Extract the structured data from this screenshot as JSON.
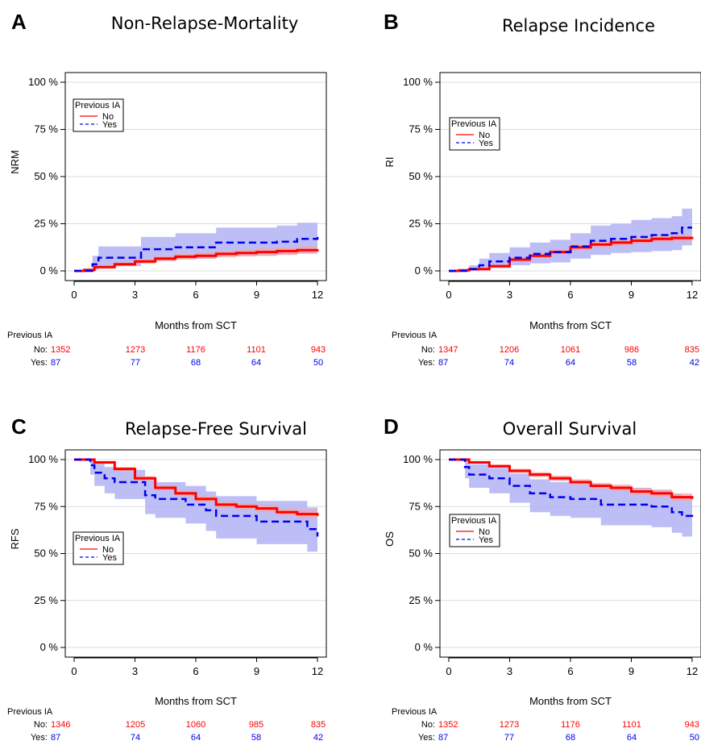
{
  "colors": {
    "no": "#ff0000",
    "yes": "#0000ee",
    "no_band": "#f2a6a6",
    "yes_band": "#b3b3f5",
    "grid": "#dcdcdc"
  },
  "chart_data": [
    {
      "type": "line",
      "panel": "A",
      "title": "Non-Relapse-Mortality",
      "xlabel": "Months from SCT",
      "ylabel": "NRM",
      "xlim": [
        0,
        12
      ],
      "ylim": [
        0,
        100
      ],
      "x_ticks": [
        "0",
        "3",
        "6",
        "9",
        "12"
      ],
      "y_ticks": [
        "0 %",
        "25 %",
        "50 %",
        "75 %",
        "100 %"
      ],
      "legend": {
        "title": "Previous IA",
        "entries": [
          "No",
          "Yes"
        ],
        "position": "top-left"
      },
      "grid": true,
      "series": [
        {
          "name": "No",
          "style": "solid",
          "x": [
            0,
            0.5,
            1,
            2,
            3,
            4,
            5,
            6,
            7,
            8,
            9,
            10,
            11,
            12
          ],
          "y": [
            0,
            0.5,
            2,
            3.5,
            5,
            6.5,
            7.5,
            8,
            9,
            9.5,
            10,
            10.5,
            11,
            11.5
          ],
          "lower": [
            0,
            0.2,
            1.2,
            2.5,
            3.8,
            5.2,
            6,
            6.5,
            7.2,
            7.7,
            8,
            8.5,
            9,
            9.5
          ],
          "upper": [
            0,
            0.9,
            2.8,
            4.5,
            6.2,
            7.8,
            9,
            9.8,
            10.6,
            11.3,
            12,
            12.5,
            13,
            13.5
          ]
        },
        {
          "name": "Yes",
          "style": "dashed",
          "x": [
            0,
            0.5,
            0.9,
            1.2,
            2,
            3,
            3.3,
            4,
            5,
            6.5,
            7,
            8,
            9,
            10,
            11,
            12
          ],
          "y": [
            0,
            0,
            3.5,
            7,
            7,
            7,
            11.5,
            11.5,
            12.5,
            12.5,
            15,
            15,
            15,
            15.5,
            17,
            18
          ],
          "lower": [
            0,
            0,
            0.5,
            2.5,
            2.5,
            2.5,
            5.5,
            5.5,
            6.5,
            6.5,
            8,
            8,
            8,
            8.5,
            9.5,
            10
          ],
          "upper": [
            0,
            0,
            8,
            13,
            13,
            13,
            18,
            18,
            20,
            20,
            23,
            23,
            23,
            24,
            25.5,
            26
          ]
        }
      ],
      "risk_table": {
        "title": "Previous IA",
        "rows": [
          {
            "label": "No:",
            "values": [
              "1352",
              "1273",
              "1176",
              "1101",
              "943"
            ]
          },
          {
            "label": "Yes:",
            "values": [
              "87",
              "77",
              "68",
              "64",
              "50"
            ]
          }
        ]
      }
    },
    {
      "type": "line",
      "panel": "B",
      "title": "Relapse Incidence",
      "xlabel": "Months from SCT",
      "ylabel": "RI",
      "xlim": [
        0,
        12
      ],
      "ylim": [
        0,
        100
      ],
      "x_ticks": [
        "0",
        "3",
        "6",
        "9",
        "12"
      ],
      "y_ticks": [
        "0 %",
        "25 %",
        "50 %",
        "75 %",
        "100 %"
      ],
      "legend": {
        "title": "Previous IA",
        "entries": [
          "No",
          "Yes"
        ],
        "position": "top-left"
      },
      "grid": true,
      "series": [
        {
          "name": "No",
          "style": "solid",
          "x": [
            0,
            0.5,
            1,
            2,
            3,
            4,
            5,
            6,
            7,
            8,
            9,
            10,
            11,
            12
          ],
          "y": [
            0,
            0.3,
            1,
            2.5,
            6,
            8,
            10,
            12.5,
            14,
            15,
            16,
            17,
            17.5,
            18
          ],
          "lower": [
            0,
            0.1,
            0.5,
            1.8,
            5,
            7,
            8.8,
            11.2,
            12.5,
            13.5,
            14.5,
            15.3,
            15.8,
            16.3
          ],
          "upper": [
            0,
            0.6,
            1.6,
            3.3,
            7,
            9.2,
            11.3,
            14,
            15.6,
            16.6,
            17.6,
            18.7,
            19.2,
            19.8
          ]
        },
        {
          "name": "Yes",
          "style": "dashed",
          "x": [
            0,
            1,
            1.5,
            2,
            3,
            4,
            5,
            6,
            6.5,
            7,
            8,
            9,
            10,
            11,
            11.5,
            12
          ],
          "y": [
            0,
            1,
            3,
            5,
            7,
            9,
            10,
            13,
            13,
            16,
            17,
            18,
            19,
            20,
            23,
            23
          ],
          "lower": [
            0,
            0,
            0.5,
            1.5,
            3,
            4,
            4.5,
            6.5,
            6.5,
            8.5,
            9.5,
            10,
            10.5,
            11,
            13.5,
            13.5
          ],
          "upper": [
            0,
            3,
            6.5,
            9.5,
            12.5,
            15,
            16.5,
            20,
            20,
            24,
            25,
            27,
            28,
            29,
            33,
            33
          ]
        }
      ],
      "risk_table": {
        "title": "Previous IA",
        "rows": [
          {
            "label": "No:",
            "values": [
              "1347",
              "1206",
              "1061",
              "986",
              "835"
            ]
          },
          {
            "label": "Yes:",
            "values": [
              "87",
              "74",
              "64",
              "58",
              "42"
            ]
          }
        ]
      }
    },
    {
      "type": "line",
      "panel": "C",
      "title": "Relapse-Free Survival",
      "xlabel": "Months from SCT",
      "ylabel": "RFS",
      "xlim": [
        0,
        12
      ],
      "ylim": [
        0,
        100
      ],
      "x_ticks": [
        "0",
        "3",
        "6",
        "9",
        "12"
      ],
      "y_ticks": [
        "0 %",
        "25 %",
        "50 %",
        "75 %",
        "100 %"
      ],
      "legend": {
        "title": "Previous IA",
        "entries": [
          "No",
          "Yes"
        ],
        "position": "middle-left"
      },
      "grid": true,
      "series": [
        {
          "name": "No",
          "style": "solid",
          "x": [
            0,
            0.5,
            1,
            2,
            3,
            4,
            5,
            6,
            7,
            8,
            9,
            10,
            11,
            12
          ],
          "y": [
            100,
            100,
            98.5,
            95,
            90,
            85,
            82,
            79,
            76,
            75,
            74,
            72,
            71,
            70
          ],
          "lower": [
            100,
            100,
            97.8,
            94,
            88.8,
            83.7,
            80.5,
            77.4,
            74.3,
            73.2,
            72,
            70,
            68.8,
            67.6
          ],
          "upper": [
            100,
            100,
            99.2,
            96,
            91.2,
            86.3,
            83.5,
            80.6,
            77.7,
            76.8,
            76,
            74,
            73.2,
            72.4
          ]
        },
        {
          "name": "Yes",
          "style": "dashed",
          "x": [
            0,
            0.5,
            0.8,
            1,
            1.5,
            2,
            3,
            3.5,
            4,
            5,
            5.5,
            6,
            6.5,
            7,
            8,
            9,
            10,
            11,
            11.5,
            12
          ],
          "y": [
            100,
            100,
            97,
            93,
            90,
            88,
            88,
            81,
            79,
            79,
            76,
            76,
            73,
            70,
            70,
            67,
            67,
            67,
            63,
            59
          ],
          "lower": [
            100,
            100,
            92,
            86,
            82,
            79,
            79,
            71,
            69,
            69,
            66,
            66,
            62,
            58,
            58,
            55,
            55,
            55,
            51,
            47
          ],
          "upper": [
            100,
            100,
            100,
            98,
            96,
            94.5,
            94.5,
            89,
            88,
            88,
            86,
            86,
            83,
            80.5,
            80.5,
            78,
            78,
            78,
            74.5,
            71
          ]
        }
      ],
      "risk_table": {
        "title": "Previous IA",
        "rows": [
          {
            "label": "No:",
            "values": [
              "1346",
              "1205",
              "1060",
              "985",
              "835"
            ]
          },
          {
            "label": "Yes:",
            "values": [
              "87",
              "74",
              "64",
              "58",
              "42"
            ]
          }
        ]
      }
    },
    {
      "type": "line",
      "panel": "D",
      "title": "Overall Survival",
      "xlabel": "Months from SCT",
      "ylabel": "OS",
      "xlim": [
        0,
        12
      ],
      "ylim": [
        0,
        100
      ],
      "x_ticks": [
        "0",
        "3",
        "6",
        "9",
        "12"
      ],
      "y_ticks": [
        "0 %",
        "25 %",
        "50 %",
        "75 %",
        "100 %"
      ],
      "legend": {
        "title": "Previous IA",
        "entries": [
          "No",
          "Yes"
        ],
        "position": "middle-left"
      },
      "grid": true,
      "series": [
        {
          "name": "No",
          "style": "solid",
          "x": [
            0,
            0.5,
            1,
            2,
            3,
            4,
            5,
            6,
            7,
            8,
            9,
            10,
            11,
            12
          ],
          "y": [
            100,
            100,
            98.5,
            96.5,
            94,
            92,
            90,
            88,
            86,
            85,
            83,
            82,
            80,
            79
          ],
          "lower": [
            100,
            100,
            97.9,
            95.6,
            92.9,
            90.7,
            88.6,
            86.5,
            84.4,
            83.3,
            81.2,
            80.1,
            78,
            76.8
          ],
          "upper": [
            100,
            100,
            99.1,
            97.4,
            95.1,
            93.3,
            91.4,
            89.5,
            87.6,
            86.7,
            84.8,
            83.9,
            82,
            81.2
          ]
        },
        {
          "name": "Yes",
          "style": "dashed",
          "x": [
            0,
            0.5,
            0.8,
            1,
            2,
            3,
            3.5,
            4,
            5,
            6,
            7,
            7.5,
            8,
            9,
            10,
            11,
            11.5,
            12
          ],
          "y": [
            100,
            100,
            96,
            92,
            90,
            86,
            86,
            82,
            80,
            79,
            79,
            76,
            76,
            76,
            75,
            72,
            70,
            69
          ],
          "lower": [
            100,
            100,
            90,
            85,
            82,
            77,
            77,
            72,
            70,
            69,
            69,
            65,
            65,
            65,
            64,
            61,
            59,
            58
          ],
          "upper": [
            100,
            100,
            100,
            97.5,
            95.5,
            92.5,
            92.5,
            89.5,
            88,
            87,
            87,
            85,
            85,
            85,
            84,
            81.5,
            80,
            79
          ]
        }
      ],
      "risk_table": {
        "title": "Previous IA",
        "rows": [
          {
            "label": "No:",
            "values": [
              "1352",
              "1273",
              "1176",
              "1101",
              "943"
            ]
          },
          {
            "label": "Yes:",
            "values": [
              "87",
              "77",
              "68",
              "64",
              "50"
            ]
          }
        ]
      }
    }
  ]
}
